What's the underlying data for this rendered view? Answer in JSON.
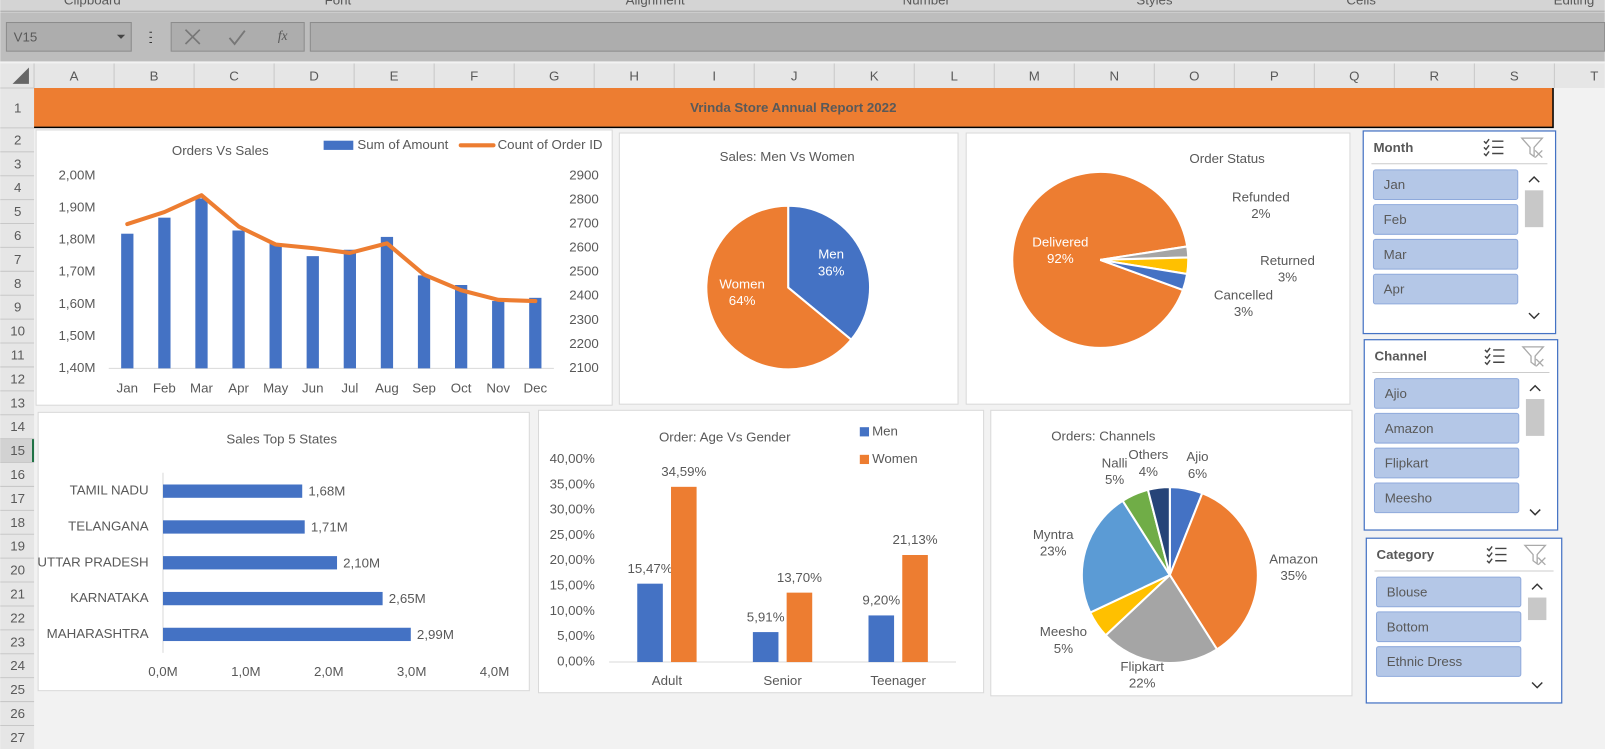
{
  "ribbon": [
    "Clipboard",
    "Font",
    "Alignment",
    "Number",
    "Styles",
    "Cells",
    "Editing"
  ],
  "name_box": "V15",
  "formula_bar": {
    "function_icon": "fx"
  },
  "columns": [
    "A",
    "B",
    "C",
    "D",
    "E",
    "F",
    "G",
    "H",
    "I",
    "J",
    "K",
    "L",
    "M",
    "N",
    "O",
    "P",
    "Q",
    "R",
    "S",
    "T"
  ],
  "rows": [
    1,
    2,
    3,
    4,
    5,
    6,
    7,
    8,
    9,
    10,
    11,
    12,
    13,
    14,
    15,
    16,
    17,
    18,
    19,
    20,
    21,
    22,
    23,
    24,
    25,
    26,
    27
  ],
  "selected_row": 15,
  "title": "Vrinda Store Annual Report 2022",
  "chart_data": [
    {
      "type": "bar",
      "title": "Orders Vs Sales",
      "categories": [
        "Jan",
        "Feb",
        "Mar",
        "Apr",
        "May",
        "Jun",
        "Jul",
        "Aug",
        "Sep",
        "Oct",
        "Nov",
        "Dec"
      ],
      "series": [
        {
          "name": "Sum of Amount",
          "color": "#4472c4",
          "values": [
            1.82,
            1.87,
            1.93,
            1.83,
            1.79,
            1.75,
            1.77,
            1.81,
            1.69,
            1.66,
            1.61,
            1.62
          ]
        },
        {
          "name": "Count of Order ID",
          "type": "line",
          "axis": "y2",
          "color": "#ed7d31",
          "values": [
            2700,
            2750,
            2820,
            2690,
            2615,
            2600,
            2580,
            2620,
            2490,
            2425,
            2385,
            2380
          ]
        }
      ],
      "ylim": [
        1.4,
        2.0
      ],
      "yticks": [
        {
          "value": 1.4,
          "label": "1,40M"
        },
        {
          "value": 1.5,
          "label": "1,50M"
        },
        {
          "value": 1.6,
          "label": "1,60M"
        },
        {
          "value": 1.7,
          "label": "1,70M"
        },
        {
          "value": 1.8,
          "label": "1,80M"
        },
        {
          "value": 1.9,
          "label": "1,90M"
        },
        {
          "value": 2.0,
          "label": "2,00M"
        }
      ],
      "y2lim": [
        2100,
        2900
      ],
      "y2ticks": [
        2100,
        2200,
        2300,
        2400,
        2500,
        2600,
        2700,
        2800,
        2900
      ],
      "legend": "top"
    },
    {
      "type": "pie",
      "title": "Sales: Men Vs Women",
      "categories": [
        "Men",
        "Women"
      ],
      "values": [
        36,
        64
      ],
      "value_labels": [
        "36%",
        "64%"
      ],
      "colors": [
        "#4472c4",
        "#ed7d31"
      ]
    },
    {
      "type": "pie",
      "title": "Order Status",
      "categories": [
        "Delivered",
        "Refunded",
        "Returned",
        "Cancelled"
      ],
      "values": [
        92,
        2,
        3,
        3
      ],
      "value_labels": [
        "92%",
        "2%",
        "3%",
        "3%"
      ],
      "colors": [
        "#ed7d31",
        "#a5a5a5",
        "#ffc000",
        "#4472c4"
      ]
    },
    {
      "type": "hbar",
      "title": "Sales Top 5 States",
      "categories": [
        "TAMIL NADU",
        "TELANGANA",
        "UTTAR PRADESH",
        "KARNATAKA",
        "MAHARASHTRA"
      ],
      "values": [
        1.68,
        1.71,
        2.1,
        2.65,
        2.99
      ],
      "value_labels": [
        "1,68M",
        "1,71M",
        "2,10M",
        "2,65M",
        "2,99M"
      ],
      "color": "#4472c4",
      "xlim": [
        0,
        4
      ],
      "xticks": [
        {
          "value": 0,
          "label": "0,0M"
        },
        {
          "value": 1,
          "label": "1,0M"
        },
        {
          "value": 2,
          "label": "2,0M"
        },
        {
          "value": 3,
          "label": "3,0M"
        },
        {
          "value": 4,
          "label": "4,0M"
        }
      ]
    },
    {
      "type": "bar",
      "title": "Order: Age Vs Gender",
      "categories": [
        "Adult",
        "Senior",
        "Teenager"
      ],
      "series": [
        {
          "name": "Men",
          "color": "#4472c4",
          "values": [
            15.47,
            5.91,
            9.2
          ],
          "value_labels": [
            "15,47%",
            "5,91%",
            "9,20%"
          ]
        },
        {
          "name": "Women",
          "color": "#ed7d31",
          "values": [
            34.59,
            13.7,
            21.13
          ],
          "value_labels": [
            "34,59%",
            "13,70%",
            "21,13%"
          ]
        }
      ],
      "ylim": [
        0,
        40
      ],
      "yticks": [
        {
          "value": 0,
          "label": "0,00%"
        },
        {
          "value": 5,
          "label": "5,00%"
        },
        {
          "value": 10,
          "label": "10,00%"
        },
        {
          "value": 15,
          "label": "15,00%"
        },
        {
          "value": 20,
          "label": "20,00%"
        },
        {
          "value": 25,
          "label": "25,00%"
        },
        {
          "value": 30,
          "label": "30,00%"
        },
        {
          "value": 35,
          "label": "35,00%"
        },
        {
          "value": 40,
          "label": "40,00%"
        }
      ],
      "legend": "top-right"
    },
    {
      "type": "pie",
      "title": "Orders: Channels",
      "categories": [
        "Ajio",
        "Amazon",
        "Flipkart",
        "Meesho",
        "Myntra",
        "Nalli",
        "Others"
      ],
      "values": [
        6,
        35,
        22,
        5,
        23,
        5,
        4
      ],
      "value_labels": [
        "6%",
        "35%",
        "22%",
        "5%",
        "23%",
        "5%",
        "4%"
      ],
      "colors": [
        "#4472c4",
        "#ed7d31",
        "#a5a5a5",
        "#ffc000",
        "#5b9bd5",
        "#70ad47",
        "#264478"
      ]
    }
  ],
  "slicers": [
    {
      "title": "Month",
      "items": [
        "Jan",
        "Feb",
        "Mar",
        "Apr"
      ]
    },
    {
      "title": "Channel",
      "items": [
        "Ajio",
        "Amazon",
        "Flipkart",
        "Meesho"
      ]
    },
    {
      "title": "Category",
      "items": [
        "Blouse",
        "Bottom",
        "Ethnic Dress"
      ]
    }
  ]
}
